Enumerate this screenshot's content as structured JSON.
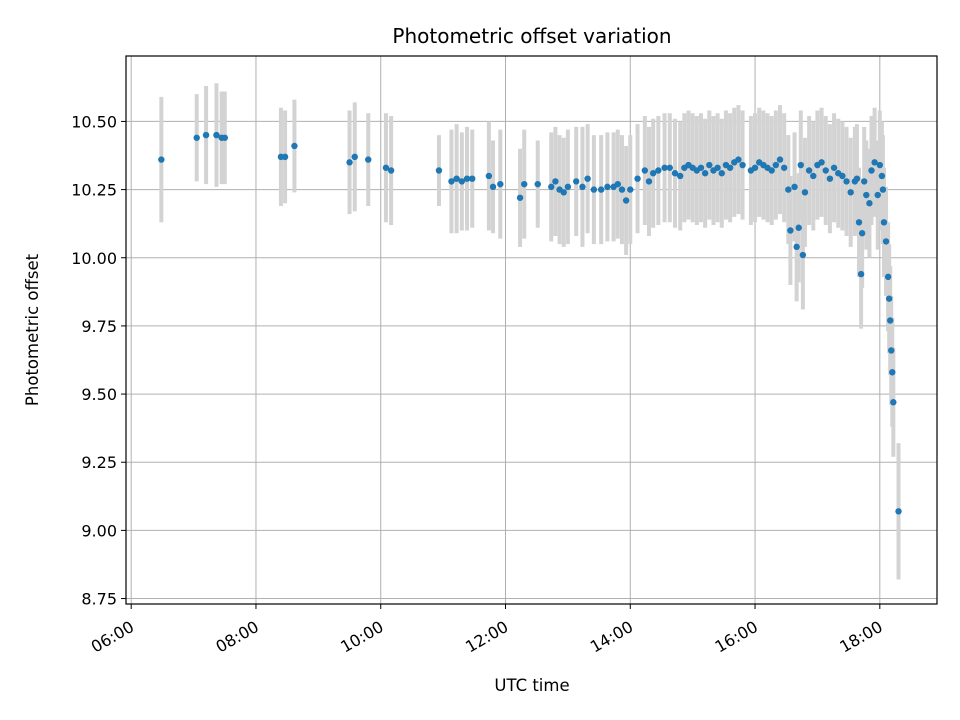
{
  "chart_data": {
    "type": "scatter",
    "title": "Photometric offset variation",
    "xlabel": "UTC time",
    "ylabel": "Photometric offset",
    "x_axis": {
      "range": [
        "05:55",
        "18:55"
      ],
      "ticks": [
        "06:00",
        "08:00",
        "10:00",
        "12:00",
        "14:00",
        "16:00",
        "18:00"
      ],
      "tick_rotation_deg": 30
    },
    "y_axis": {
      "range": [
        8.73,
        10.74
      ],
      "ticks": [
        "8.75",
        "9.00",
        "9.25",
        "9.50",
        "9.75",
        "10.00",
        "10.25",
        "10.50"
      ]
    },
    "grid": true,
    "legend": "none",
    "colors": {
      "points": "#1f77b4",
      "error_bars": "#d3d3d3",
      "grid": "#b0b0b0",
      "axes": "#000000"
    },
    "series": [
      {
        "points": [
          {
            "t": "06:29",
            "y": 10.36,
            "err": 0.23
          },
          {
            "t": "07:03",
            "y": 10.44,
            "err": 0.16
          },
          {
            "t": "07:12",
            "y": 10.45,
            "err": 0.18
          },
          {
            "t": "07:22",
            "y": 10.45,
            "err": 0.19
          },
          {
            "t": "07:27",
            "y": 10.44,
            "err": 0.17
          },
          {
            "t": "07:30",
            "y": 10.44,
            "err": 0.17
          },
          {
            "t": "08:24",
            "y": 10.37,
            "err": 0.18
          },
          {
            "t": "08:28",
            "y": 10.37,
            "err": 0.17
          },
          {
            "t": "08:37",
            "y": 10.41,
            "err": 0.17
          },
          {
            "t": "09:30",
            "y": 10.35,
            "err": 0.19
          },
          {
            "t": "09:35",
            "y": 10.37,
            "err": 0.2
          },
          {
            "t": "09:48",
            "y": 10.36,
            "err": 0.17
          },
          {
            "t": "10:05",
            "y": 10.33,
            "err": 0.2
          },
          {
            "t": "10:10",
            "y": 10.32,
            "err": 0.2
          },
          {
            "t": "10:56",
            "y": 10.32,
            "err": 0.13
          },
          {
            "t": "11:08",
            "y": 10.28,
            "err": 0.19
          },
          {
            "t": "11:13",
            "y": 10.29,
            "err": 0.2
          },
          {
            "t": "11:18",
            "y": 10.28,
            "err": 0.18
          },
          {
            "t": "11:23",
            "y": 10.29,
            "err": 0.19
          },
          {
            "t": "11:28",
            "y": 10.29,
            "err": 0.18
          },
          {
            "t": "11:44",
            "y": 10.3,
            "err": 0.2
          },
          {
            "t": "11:48",
            "y": 10.26,
            "err": 0.17
          },
          {
            "t": "11:55",
            "y": 10.27,
            "err": 0.2
          },
          {
            "t": "12:14",
            "y": 10.22,
            "err": 0.18
          },
          {
            "t": "12:18",
            "y": 10.27,
            "err": 0.2
          },
          {
            "t": "12:31",
            "y": 10.27,
            "err": 0.16
          },
          {
            "t": "12:44",
            "y": 10.26,
            "err": 0.2
          },
          {
            "t": "12:48",
            "y": 10.28,
            "err": 0.2
          },
          {
            "t": "12:52",
            "y": 10.25,
            "err": 0.2
          },
          {
            "t": "12:56",
            "y": 10.24,
            "err": 0.2
          },
          {
            "t": "13:00",
            "y": 10.26,
            "err": 0.21
          },
          {
            "t": "13:08",
            "y": 10.28,
            "err": 0.2
          },
          {
            "t": "13:14",
            "y": 10.26,
            "err": 0.22
          },
          {
            "t": "13:19",
            "y": 10.29,
            "err": 0.2
          },
          {
            "t": "13:25",
            "y": 10.25,
            "err": 0.2
          },
          {
            "t": "13:32",
            "y": 10.25,
            "err": 0.2
          },
          {
            "t": "13:38",
            "y": 10.26,
            "err": 0.2
          },
          {
            "t": "13:44",
            "y": 10.26,
            "err": 0.2
          },
          {
            "t": "13:48",
            "y": 10.27,
            "err": 0.2
          },
          {
            "t": "13:52",
            "y": 10.25,
            "err": 0.2
          },
          {
            "t": "13:56",
            "y": 10.21,
            "err": 0.2
          },
          {
            "t": "14:00",
            "y": 10.25,
            "err": 0.2
          },
          {
            "t": "14:07",
            "y": 10.29,
            "err": 0.2
          },
          {
            "t": "14:14",
            "y": 10.32,
            "err": 0.2
          },
          {
            "t": "14:18",
            "y": 10.28,
            "err": 0.2
          },
          {
            "t": "14:22",
            "y": 10.31,
            "err": 0.2
          },
          {
            "t": "14:27",
            "y": 10.32,
            "err": 0.2
          },
          {
            "t": "14:33",
            "y": 10.33,
            "err": 0.2
          },
          {
            "t": "14:38",
            "y": 10.33,
            "err": 0.2
          },
          {
            "t": "14:43",
            "y": 10.31,
            "err": 0.2
          },
          {
            "t": "14:48",
            "y": 10.3,
            "err": 0.2
          },
          {
            "t": "14:52",
            "y": 10.33,
            "err": 0.2
          },
          {
            "t": "14:56",
            "y": 10.34,
            "err": 0.2
          },
          {
            "t": "15:00",
            "y": 10.33,
            "err": 0.2
          },
          {
            "t": "15:04",
            "y": 10.32,
            "err": 0.2
          },
          {
            "t": "15:08",
            "y": 10.33,
            "err": 0.2
          },
          {
            "t": "15:12",
            "y": 10.31,
            "err": 0.2
          },
          {
            "t": "15:16",
            "y": 10.34,
            "err": 0.2
          },
          {
            "t": "15:20",
            "y": 10.32,
            "err": 0.2
          },
          {
            "t": "15:24",
            "y": 10.33,
            "err": 0.2
          },
          {
            "t": "15:28",
            "y": 10.31,
            "err": 0.2
          },
          {
            "t": "15:32",
            "y": 10.34,
            "err": 0.2
          },
          {
            "t": "15:36",
            "y": 10.33,
            "err": 0.2
          },
          {
            "t": "15:40",
            "y": 10.35,
            "err": 0.2
          },
          {
            "t": "15:44",
            "y": 10.36,
            "err": 0.2
          },
          {
            "t": "15:48",
            "y": 10.34,
            "err": 0.2
          },
          {
            "t": "15:56",
            "y": 10.32,
            "err": 0.2
          },
          {
            "t": "16:00",
            "y": 10.33,
            "err": 0.2
          },
          {
            "t": "16:04",
            "y": 10.35,
            "err": 0.2
          },
          {
            "t": "16:08",
            "y": 10.34,
            "err": 0.2
          },
          {
            "t": "16:12",
            "y": 10.33,
            "err": 0.2
          },
          {
            "t": "16:16",
            "y": 10.32,
            "err": 0.2
          },
          {
            "t": "16:20",
            "y": 10.34,
            "err": 0.2
          },
          {
            "t": "16:24",
            "y": 10.36,
            "err": 0.2
          },
          {
            "t": "16:28",
            "y": 10.33,
            "err": 0.2
          },
          {
            "t": "16:32",
            "y": 10.25,
            "err": 0.2
          },
          {
            "t": "16:34",
            "y": 10.1,
            "err": 0.2
          },
          {
            "t": "16:38",
            "y": 10.26,
            "err": 0.2
          },
          {
            "t": "16:40",
            "y": 10.04,
            "err": 0.2
          },
          {
            "t": "16:42",
            "y": 10.11,
            "err": 0.2
          },
          {
            "t": "16:44",
            "y": 10.34,
            "err": 0.2
          },
          {
            "t": "16:46",
            "y": 10.01,
            "err": 0.2
          },
          {
            "t": "16:48",
            "y": 10.24,
            "err": 0.2
          },
          {
            "t": "16:52",
            "y": 10.32,
            "err": 0.2
          },
          {
            "t": "16:56",
            "y": 10.3,
            "err": 0.2
          },
          {
            "t": "17:00",
            "y": 10.34,
            "err": 0.2
          },
          {
            "t": "17:04",
            "y": 10.35,
            "err": 0.2
          },
          {
            "t": "17:08",
            "y": 10.32,
            "err": 0.2
          },
          {
            "t": "17:12",
            "y": 10.29,
            "err": 0.2
          },
          {
            "t": "17:16",
            "y": 10.33,
            "err": 0.2
          },
          {
            "t": "17:20",
            "y": 10.31,
            "err": 0.2
          },
          {
            "t": "17:24",
            "y": 10.3,
            "err": 0.2
          },
          {
            "t": "17:28",
            "y": 10.28,
            "err": 0.2
          },
          {
            "t": "17:32",
            "y": 10.24,
            "err": 0.2
          },
          {
            "t": "17:36",
            "y": 10.28,
            "err": 0.2
          },
          {
            "t": "17:38",
            "y": 10.29,
            "err": 0.2
          },
          {
            "t": "17:40",
            "y": 10.13,
            "err": 0.2
          },
          {
            "t": "17:42",
            "y": 9.94,
            "err": 0.2
          },
          {
            "t": "17:43",
            "y": 10.09,
            "err": 0.2
          },
          {
            "t": "17:45",
            "y": 10.28,
            "err": 0.2
          },
          {
            "t": "17:47",
            "y": 10.23,
            "err": 0.2
          },
          {
            "t": "17:50",
            "y": 10.2,
            "err": 0.2
          },
          {
            "t": "17:52",
            "y": 10.32,
            "err": 0.2
          },
          {
            "t": "17:55",
            "y": 10.35,
            "err": 0.2
          },
          {
            "t": "17:58",
            "y": 10.23,
            "err": 0.2
          },
          {
            "t": "18:00",
            "y": 10.34,
            "err": 0.2
          },
          {
            "t": "18:02",
            "y": 10.3,
            "err": 0.2
          },
          {
            "t": "18:03",
            "y": 10.25,
            "err": 0.2
          },
          {
            "t": "18:04",
            "y": 10.13,
            "err": 0.2
          },
          {
            "t": "18:06",
            "y": 10.06,
            "err": 0.2
          },
          {
            "t": "18:08",
            "y": 9.93,
            "err": 0.2
          },
          {
            "t": "18:09",
            "y": 9.85,
            "err": 0.2
          },
          {
            "t": "18:10",
            "y": 9.77,
            "err": 0.2
          },
          {
            "t": "18:11",
            "y": 9.66,
            "err": 0.2
          },
          {
            "t": "18:12",
            "y": 9.58,
            "err": 0.2
          },
          {
            "t": "18:13",
            "y": 9.47,
            "err": 0.2
          },
          {
            "t": "18:18",
            "y": 9.07,
            "err": 0.25
          }
        ]
      }
    ]
  }
}
